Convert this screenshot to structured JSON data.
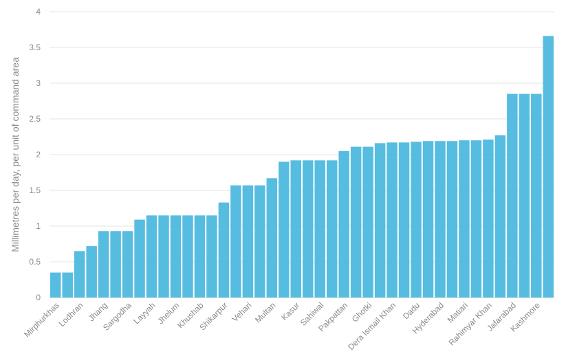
{
  "chart_data": {
    "type": "bar",
    "title": "",
    "xlabel": "",
    "ylabel": "Millimetres per day, per unit of command area",
    "ylim": [
      0,
      4
    ],
    "yticks": [
      0,
      0.5,
      1,
      1.5,
      2,
      2.5,
      3,
      3.5,
      4
    ],
    "grid": true,
    "bar_color": "#56bde0",
    "categories": [
      "Mirphurkhas",
      "",
      "Lodhran",
      "",
      "Jhang",
      "",
      "Sargodha",
      "",
      "Layyah",
      "",
      "Jhelum",
      "",
      "Khushab",
      "",
      "Shikarpur",
      "",
      "Vehari",
      "",
      "Multan",
      "",
      "Kasur",
      "",
      "Sahiwal",
      "",
      "Pakpattan",
      "",
      "Ghotki",
      "",
      "Dera Ismail Khan",
      "",
      "Dadu",
      "",
      "Hyderabad",
      "",
      "Matiari",
      "",
      "Rahimyar Khan",
      "",
      "Jafarabad",
      "",
      "Kashmore",
      ""
    ],
    "values": [
      0.35,
      0.35,
      0.65,
      0.72,
      0.93,
      0.93,
      0.93,
      1.09,
      1.15,
      1.15,
      1.15,
      1.15,
      1.15,
      1.15,
      1.33,
      1.57,
      1.57,
      1.57,
      1.67,
      1.9,
      1.92,
      1.92,
      1.92,
      1.92,
      2.05,
      2.11,
      2.11,
      2.16,
      2.17,
      2.17,
      2.18,
      2.19,
      2.19,
      2.19,
      2.2,
      2.2,
      2.21,
      2.27,
      2.85,
      2.85,
      2.85,
      3.66
    ]
  }
}
